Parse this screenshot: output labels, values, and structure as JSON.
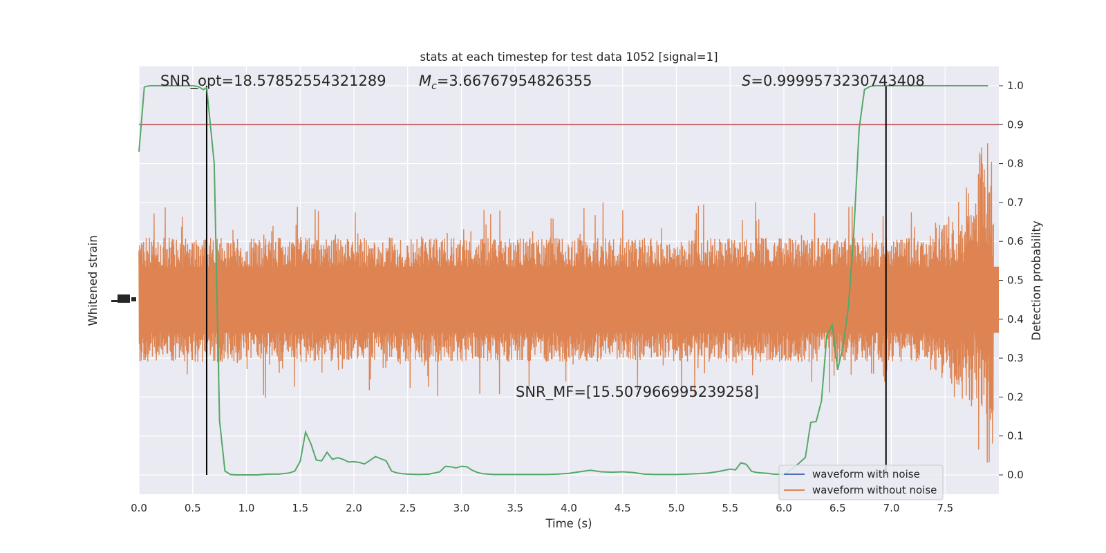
{
  "chart_data": {
    "type": "line",
    "title": "stats at each timestep for test data 1052 [signal=1]",
    "xlabel": "Time (s)",
    "ylabel_left": "Whitened strain",
    "ylabel_right": "Detection probability",
    "xlim": [
      0.0,
      8.0
    ],
    "ylim_right": [
      -0.05,
      1.05
    ],
    "x_ticks": [
      "0.0",
      "0.5",
      "1.0",
      "1.5",
      "2.0",
      "2.5",
      "3.0",
      "3.5",
      "4.0",
      "4.5",
      "5.0",
      "5.5",
      "6.0",
      "6.5",
      "7.0",
      "7.5"
    ],
    "y_right_ticks": [
      "0.0",
      "0.1",
      "0.2",
      "0.3",
      "0.4",
      "0.5",
      "0.6",
      "0.7",
      "0.8",
      "0.9",
      "1.0"
    ],
    "grid": true,
    "legend_position": "bottom-right",
    "annotations": {
      "snr_opt": "SNR_opt=18.57852554321289",
      "mc_symbol": "M",
      "mc_sub": "c",
      "mc_value": "=3.66767954826355",
      "s_symbol": "S",
      "s_value": "=0.9999573230743408",
      "snr_mf": "SNR_MF=[15.507966995239258]"
    },
    "threshold": 0.9,
    "vertical_lines_x": [
      0.63,
      6.95
    ],
    "series": [
      {
        "name": "waveform with noise",
        "color": "#4c72b0",
        "description": "hidden beneath orange trace"
      },
      {
        "name": "waveform without noise",
        "color": "#dd8452",
        "band_center": 0.45,
        "band_halfwidth": 0.1,
        "spike_amplitude": 0.23
      },
      {
        "name": "detection probability",
        "color": "#55a868",
        "x": [
          0.0,
          0.05,
          0.1,
          0.2,
          0.3,
          0.4,
          0.5,
          0.55,
          0.6,
          0.63,
          0.7,
          0.75,
          0.8,
          0.85,
          0.9,
          1.0,
          1.1,
          1.2,
          1.3,
          1.4,
          1.45,
          1.5,
          1.55,
          1.6,
          1.65,
          1.7,
          1.75,
          1.8,
          1.85,
          1.9,
          1.95,
          2.0,
          2.05,
          2.1,
          2.2,
          2.3,
          2.35,
          2.4,
          2.45,
          2.5,
          2.6,
          2.7,
          2.8,
          2.85,
          2.9,
          2.95,
          3.0,
          3.05,
          3.1,
          3.15,
          3.2,
          3.25,
          3.3,
          3.35,
          3.4,
          3.5,
          3.6,
          3.7,
          3.8,
          3.9,
          4.0,
          4.1,
          4.2,
          4.3,
          4.4,
          4.5,
          4.6,
          4.7,
          4.8,
          4.9,
          5.0,
          5.1,
          5.2,
          5.3,
          5.4,
          5.5,
          5.55,
          5.6,
          5.65,
          5.7,
          5.75,
          5.8,
          5.85,
          5.9,
          6.0,
          6.1,
          6.2,
          6.25,
          6.3,
          6.35,
          6.4,
          6.45,
          6.5,
          6.55,
          6.6,
          6.65,
          6.7,
          6.75,
          6.8,
          6.85,
          6.9,
          6.95,
          7.0,
          7.05,
          7.1,
          7.2,
          7.3,
          7.4,
          7.5,
          7.6,
          7.7,
          7.8,
          7.9
        ],
        "values": [
          0.83,
          0.997,
          1.0,
          1.0,
          1.0,
          1.0,
          1.0,
          0.998,
          0.99,
          0.995,
          0.8,
          0.14,
          0.01,
          0.001,
          0.0,
          0.0,
          0.0,
          0.002,
          0.002,
          0.005,
          0.01,
          0.035,
          0.11,
          0.08,
          0.038,
          0.036,
          0.058,
          0.04,
          0.044,
          0.04,
          0.033,
          0.034,
          0.032,
          0.028,
          0.047,
          0.036,
          0.01,
          0.005,
          0.003,
          0.002,
          0.001,
          0.002,
          0.008,
          0.022,
          0.021,
          0.018,
          0.022,
          0.021,
          0.012,
          0.006,
          0.003,
          0.002,
          0.001,
          0.001,
          0.001,
          0.001,
          0.001,
          0.001,
          0.001,
          0.002,
          0.004,
          0.008,
          0.012,
          0.008,
          0.007,
          0.008,
          0.006,
          0.002,
          0.001,
          0.001,
          0.001,
          0.002,
          0.003,
          0.005,
          0.009,
          0.015,
          0.013,
          0.031,
          0.027,
          0.009,
          0.006,
          0.005,
          0.004,
          0.002,
          0.001,
          0.02,
          0.045,
          0.135,
          0.137,
          0.19,
          0.36,
          0.385,
          0.27,
          0.33,
          0.43,
          0.62,
          0.89,
          0.99,
          0.998,
          1.0,
          1.0,
          1.0,
          1.0,
          1.0,
          1.0,
          1.0,
          1.0,
          1.0,
          1.0,
          1.0,
          1.0,
          1.0,
          1.0
        ]
      }
    ]
  }
}
